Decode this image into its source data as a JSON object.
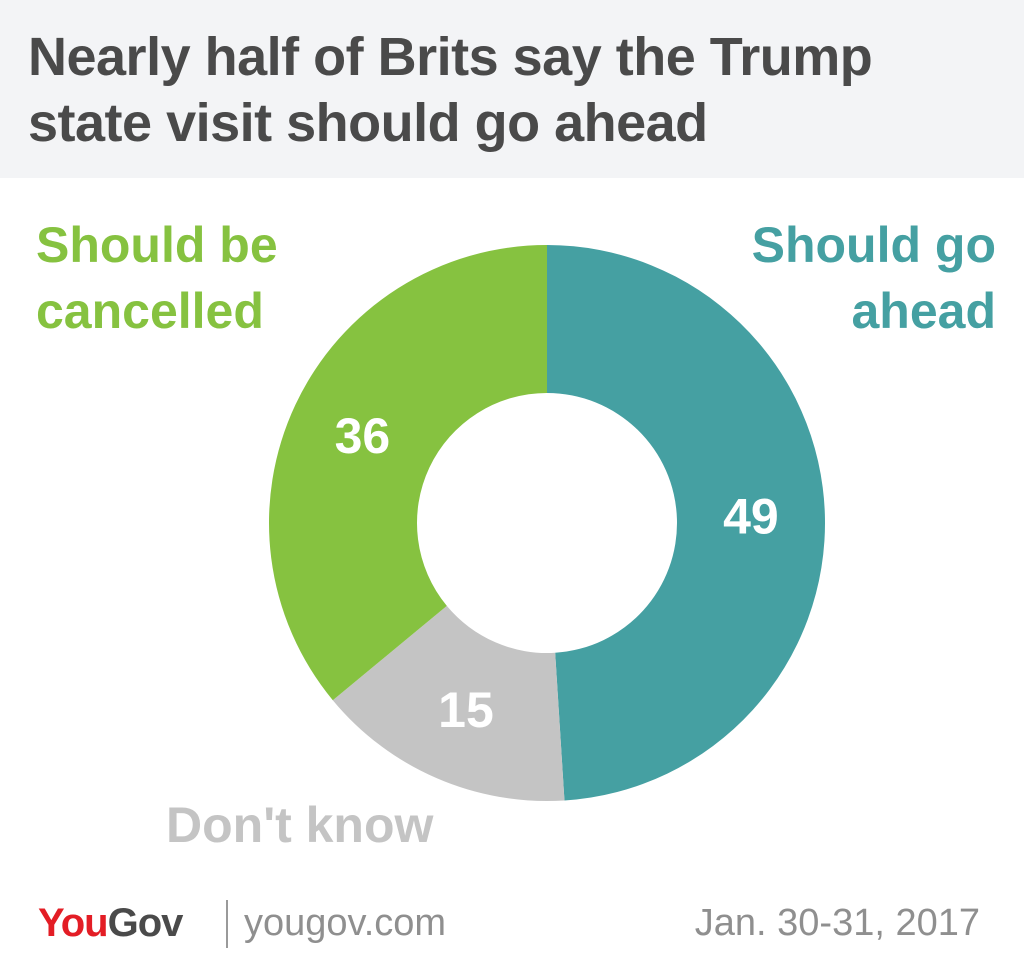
{
  "header": {
    "title": "Nearly half of Brits say the Trump state visit should go ahead"
  },
  "chart_data": {
    "type": "pie",
    "variant": "donut",
    "categories": [
      "Should go ahead",
      "Don't know",
      "Should be cancelled"
    ],
    "values": [
      49,
      15,
      36
    ],
    "colors": [
      "#45a0a2",
      "#c4c4c4",
      "#86c240"
    ],
    "value_labels": [
      "49",
      "15",
      "36"
    ]
  },
  "labels": {
    "cancelled_line1": "Should be",
    "cancelled_line2": "cancelled",
    "ahead_line1": "Should go",
    "ahead_line2": "ahead",
    "dont_know": "Don't know"
  },
  "footer": {
    "logo_you": "You",
    "logo_gov": "Gov",
    "url": "yougov.com",
    "date": "Jan. 30-31, 2017"
  }
}
